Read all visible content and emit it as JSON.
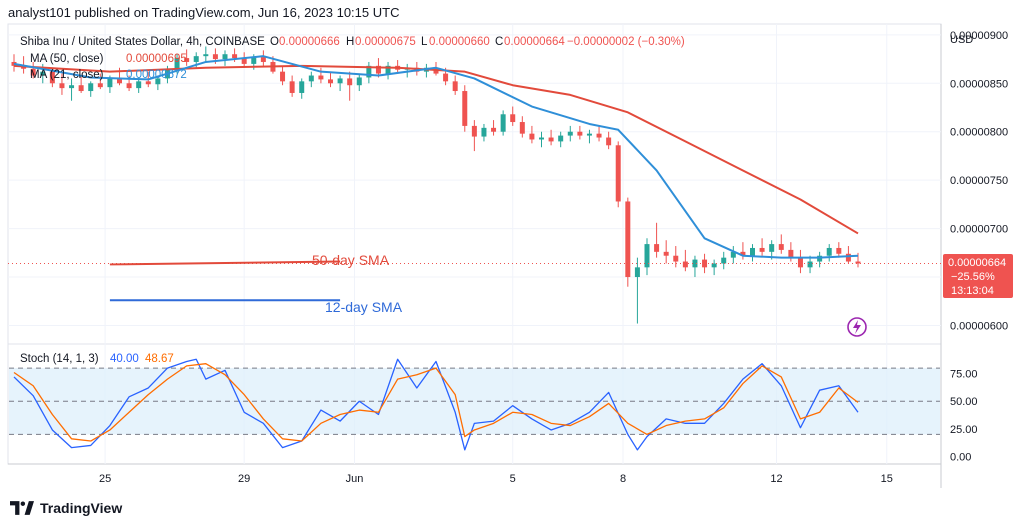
{
  "header": {
    "published_line": "analyst101 published on TradingView.com, Jun 16, 2023 10:15 UTC"
  },
  "symbol_line": {
    "name": "Shiba Inu / United States Dollar, 4h, COINBASE",
    "o_label": "O",
    "o": "0.00000666",
    "h_label": "H",
    "h": "0.00000675",
    "l_label": "L",
    "l": "0.00000660",
    "c_label": "C",
    "c": "0.00000664",
    "change": "−0.00000002 (−0.30%)"
  },
  "ma_legend": [
    {
      "label": "MA (50, close)",
      "value": "0.00000695",
      "color": "#e24a3b"
    },
    {
      "label": "MA (21, close)",
      "value": "0.00000672",
      "color": "#2f8fd8"
    }
  ],
  "annotations": {
    "sma50": "50-day SMA",
    "sma12": "12-day SMA"
  },
  "price_badge": {
    "price": "0.00000664",
    "change_pct": "−25.56%",
    "countdown": "13:13:04",
    "color": "#ef5350"
  },
  "stoch_legend": {
    "label": "Stoch (14, 1, 3)",
    "k": "40.00",
    "d": "48.67",
    "k_color": "#2962ff",
    "d_color": "#ff6d00"
  },
  "footer": {
    "brand": "TradingView"
  },
  "colors": {
    "up": "#26a69a",
    "down": "#ef5350",
    "ma50": "#e24a3b",
    "ma21": "#2f8fd8",
    "band": "#dceefb"
  },
  "chart_data": [
    {
      "type": "candlestick",
      "title": "Shiba Inu / United States Dollar, 4h, COINBASE",
      "currency": "USD",
      "x_ticks": [
        "25",
        "29",
        "Jun",
        "5",
        "8",
        "12",
        "15"
      ],
      "y_ticks": [
        "0.00000900",
        "0.00000850",
        "0.00000800",
        "0.00000750",
        "0.00000700",
        "0.00000650",
        "0.00000600"
      ],
      "ylim": [
        5.85e-06,
        9.05e-06
      ],
      "x_range": [
        0,
        100
      ],
      "grid": true,
      "last_price": 6.64e-06,
      "candles": [
        [
          0,
          8.72e-06,
          8.8e-06,
          8.62e-06,
          8.68e-06
        ],
        [
          1,
          8.68e-06,
          8.78e-06,
          8.6e-06,
          8.65e-06
        ],
        [
          2,
          8.65e-06,
          8.72e-06,
          8.55e-06,
          8.58e-06
        ],
        [
          3,
          8.58e-06,
          8.7e-06,
          8.5e-06,
          8.62e-06
        ],
        [
          4,
          8.62e-06,
          8.66e-06,
          8.46e-06,
          8.5e-06
        ],
        [
          5,
          8.5e-06,
          8.6e-06,
          8.38e-06,
          8.45e-06
        ],
        [
          6,
          8.45e-06,
          8.55e-06,
          8.32e-06,
          8.48e-06
        ],
        [
          7,
          8.48e-06,
          8.58e-06,
          8.4e-06,
          8.42e-06
        ],
        [
          8,
          8.42e-06,
          8.52e-06,
          8.36e-06,
          8.5e-06
        ],
        [
          9,
          8.5e-06,
          8.6e-06,
          8.44e-06,
          8.46e-06
        ],
        [
          10,
          8.46e-06,
          8.58e-06,
          8.4e-06,
          8.55e-06
        ],
        [
          11,
          8.55e-06,
          8.66e-06,
          8.48e-06,
          8.5e-06
        ],
        [
          12,
          8.5e-06,
          8.58e-06,
          8.42e-06,
          8.45e-06
        ],
        [
          13,
          8.45e-06,
          8.56e-06,
          8.4e-06,
          8.52e-06
        ],
        [
          14,
          8.52e-06,
          8.62e-06,
          8.46e-06,
          8.49e-06
        ],
        [
          15,
          8.49e-06,
          8.58e-06,
          8.43e-06,
          8.55e-06
        ],
        [
          16,
          8.55e-06,
          8.68e-06,
          8.5e-06,
          8.65e-06
        ],
        [
          17,
          8.65e-06,
          8.8e-06,
          8.6e-06,
          8.76e-06
        ],
        [
          18,
          8.76e-06,
          8.85e-06,
          8.68e-06,
          8.72e-06
        ],
        [
          19,
          8.72e-06,
          8.82e-06,
          8.66e-06,
          8.78e-06
        ],
        [
          20,
          8.78e-06,
          8.88e-06,
          8.72e-06,
          8.8e-06
        ],
        [
          21,
          8.8e-06,
          8.86e-06,
          8.7e-06,
          8.75e-06
        ],
        [
          22,
          8.75e-06,
          8.84e-06,
          8.68e-06,
          8.8e-06
        ],
        [
          23,
          8.8e-06,
          8.86e-06,
          8.72e-06,
          8.76e-06
        ],
        [
          24,
          8.76e-06,
          8.82e-06,
          8.66e-06,
          8.7e-06
        ],
        [
          25,
          8.7e-06,
          8.8e-06,
          8.64e-06,
          8.77e-06
        ],
        [
          26,
          8.77e-06,
          8.84e-06,
          8.68e-06,
          8.72e-06
        ],
        [
          27,
          8.72e-06,
          8.78e-06,
          8.6e-06,
          8.62e-06
        ],
        [
          28,
          8.62e-06,
          8.68e-06,
          8.48e-06,
          8.52e-06
        ],
        [
          29,
          8.52e-06,
          8.58e-06,
          8.36e-06,
          8.4e-06
        ],
        [
          30,
          8.4e-06,
          8.55e-06,
          8.34e-06,
          8.52e-06
        ],
        [
          31,
          8.52e-06,
          8.62e-06,
          8.46e-06,
          8.58e-06
        ],
        [
          32,
          8.58e-06,
          8.66e-06,
          8.5e-06,
          8.54e-06
        ],
        [
          33,
          8.54e-06,
          8.62e-06,
          8.46e-06,
          8.5e-06
        ],
        [
          34,
          8.5e-06,
          8.58e-06,
          8.42e-06,
          8.55e-06
        ],
        [
          35,
          8.55e-06,
          8.62e-06,
          8.32e-06,
          8.48e-06
        ],
        [
          36,
          8.48e-06,
          8.6e-06,
          8.42e-06,
          8.56e-06
        ],
        [
          37,
          8.56e-06,
          8.72e-06,
          8.5e-06,
          8.68e-06
        ],
        [
          38,
          8.68e-06,
          8.76e-06,
          8.56e-06,
          8.6e-06
        ],
        [
          39,
          8.6e-06,
          8.72e-06,
          8.54e-06,
          8.68e-06
        ],
        [
          40,
          8.68e-06,
          8.74e-06,
          8.6e-06,
          8.64e-06
        ],
        [
          41,
          8.64e-06,
          8.7e-06,
          8.56e-06,
          8.66e-06
        ],
        [
          42,
          8.66e-06,
          8.72e-06,
          8.58e-06,
          8.62e-06
        ],
        [
          43,
          8.62e-06,
          8.7e-06,
          8.56e-06,
          8.66e-06
        ],
        [
          44,
          8.66e-06,
          8.72e-06,
          8.58e-06,
          8.6e-06
        ],
        [
          45,
          8.6e-06,
          8.66e-06,
          8.48e-06,
          8.52e-06
        ],
        [
          46,
          8.52e-06,
          8.58e-06,
          8.38e-06,
          8.42e-06
        ],
        [
          47,
          8.42e-06,
          8.48e-06,
          8e-06,
          8.06e-06
        ],
        [
          48,
          8.06e-06,
          8.12e-06,
          7.8e-06,
          7.95e-06
        ],
        [
          49,
          7.95e-06,
          8.08e-06,
          7.9e-06,
          8.04e-06
        ],
        [
          50,
          8.04e-06,
          8.12e-06,
          7.96e-06,
          8e-06
        ],
        [
          51,
          8e-06,
          8.22e-06,
          7.96e-06,
          8.18e-06
        ],
        [
          52,
          8.18e-06,
          8.26e-06,
          8.06e-06,
          8.1e-06
        ],
        [
          53,
          8.1e-06,
          8.16e-06,
          7.94e-06,
          7.98e-06
        ],
        [
          54,
          7.98e-06,
          8.06e-06,
          7.88e-06,
          7.92e-06
        ],
        [
          55,
          7.92e-06,
          8e-06,
          7.84e-06,
          7.94e-06
        ],
        [
          56,
          7.94e-06,
          8.02e-06,
          7.86e-06,
          7.9e-06
        ],
        [
          57,
          7.9e-06,
          8e-06,
          7.84e-06,
          7.96e-06
        ],
        [
          58,
          7.96e-06,
          8.06e-06,
          7.9e-06,
          8e-06
        ],
        [
          59,
          8e-06,
          8.06e-06,
          7.92e-06,
          7.96e-06
        ],
        [
          60,
          7.96e-06,
          8.02e-06,
          7.88e-06,
          7.98e-06
        ],
        [
          61,
          7.98e-06,
          8.06e-06,
          7.9e-06,
          7.94e-06
        ],
        [
          62,
          7.94e-06,
          8e-06,
          7.82e-06,
          7.86e-06
        ],
        [
          63,
          7.86e-06,
          7.9e-06,
          7.22e-06,
          7.28e-06
        ],
        [
          64,
          7.28e-06,
          7.32e-06,
          6.4e-06,
          6.5e-06
        ],
        [
          65,
          6.5e-06,
          6.7e-06,
          6.02e-06,
          6.6e-06
        ],
        [
          66,
          6.6e-06,
          6.9e-06,
          6.52e-06,
          6.84e-06
        ],
        [
          67,
          6.84e-06,
          7.06e-06,
          6.7e-06,
          6.76e-06
        ],
        [
          68,
          6.76e-06,
          6.88e-06,
          6.64e-06,
          6.72e-06
        ],
        [
          69,
          6.72e-06,
          6.82e-06,
          6.6e-06,
          6.66e-06
        ],
        [
          70,
          6.66e-06,
          6.78e-06,
          6.56e-06,
          6.6e-06
        ],
        [
          71,
          6.6e-06,
          6.72e-06,
          6.5e-06,
          6.68e-06
        ],
        [
          72,
          6.68e-06,
          6.74e-06,
          6.54e-06,
          6.6e-06
        ],
        [
          73,
          6.6e-06,
          6.68e-06,
          6.52e-06,
          6.64e-06
        ],
        [
          74,
          6.64e-06,
          6.76e-06,
          6.58e-06,
          6.7e-06
        ],
        [
          75,
          6.7e-06,
          6.82e-06,
          6.64e-06,
          6.76e-06
        ],
        [
          76,
          6.76e-06,
          6.86e-06,
          6.68e-06,
          6.72e-06
        ],
        [
          77,
          6.72e-06,
          6.84e-06,
          6.66e-06,
          6.8e-06
        ],
        [
          78,
          6.8e-06,
          6.9e-06,
          6.72e-06,
          6.76e-06
        ],
        [
          79,
          6.76e-06,
          6.88e-06,
          6.68e-06,
          6.84e-06
        ],
        [
          80,
          6.84e-06,
          6.94e-06,
          6.74e-06,
          6.78e-06
        ],
        [
          81,
          6.78e-06,
          6.86e-06,
          6.66e-06,
          6.7e-06
        ],
        [
          82,
          6.7e-06,
          6.78e-06,
          6.54e-06,
          6.6e-06
        ],
        [
          83,
          6.6e-06,
          6.72e-06,
          6.54e-06,
          6.66e-06
        ],
        [
          84,
          6.66e-06,
          6.76e-06,
          6.6e-06,
          6.72e-06
        ],
        [
          85,
          6.72e-06,
          6.84e-06,
          6.66e-06,
          6.8e-06
        ],
        [
          86,
          6.8e-06,
          6.86e-06,
          6.7e-06,
          6.74e-06
        ],
        [
          87,
          6.74e-06,
          6.82e-06,
          6.64e-06,
          6.66e-06
        ],
        [
          88,
          6.66e-06,
          6.75e-06,
          6.6e-06,
          6.64e-06
        ]
      ],
      "ma50": {
        "name": "MA (50, close)",
        "points": [
          [
            0,
            8.68e-06
          ],
          [
            10,
            8.62e-06
          ],
          [
            20,
            8.66e-06
          ],
          [
            30,
            8.68e-06
          ],
          [
            40,
            8.66e-06
          ],
          [
            47,
            8.62e-06
          ],
          [
            52,
            8.48e-06
          ],
          [
            58,
            8.38e-06
          ],
          [
            64,
            8.2e-06
          ],
          [
            70,
            7.9e-06
          ],
          [
            76,
            7.6e-06
          ],
          [
            82,
            7.3e-06
          ],
          [
            88,
            6.95e-06
          ]
        ]
      },
      "ma21": {
        "name": "MA (21, close)",
        "points": [
          [
            0,
            8.7e-06
          ],
          [
            8,
            8.56e-06
          ],
          [
            14,
            8.54e-06
          ],
          [
            20,
            8.72e-06
          ],
          [
            26,
            8.78e-06
          ],
          [
            32,
            8.62e-06
          ],
          [
            38,
            8.58e-06
          ],
          [
            44,
            8.66e-06
          ],
          [
            48,
            8.55e-06
          ],
          [
            54,
            8.26e-06
          ],
          [
            60,
            8.08e-06
          ],
          [
            63,
            8.02e-06
          ],
          [
            67,
            7.6e-06
          ],
          [
            72,
            6.9e-06
          ],
          [
            76,
            6.72e-06
          ],
          [
            80,
            6.7e-06
          ],
          [
            84,
            6.7e-06
          ],
          [
            88,
            6.72e-06
          ]
        ]
      },
      "drawn_lines": [
        {
          "label": "50-day SMA",
          "color": "#e24a3b",
          "y_start": 6.63e-06,
          "y_end": 6.66e-06,
          "x_start": 10,
          "x_end": 34
        },
        {
          "label": "12-day SMA",
          "color": "#2f6ad8",
          "y_start": 6.26e-06,
          "y_end": 6.26e-06,
          "x_start": 10,
          "x_end": 34
        }
      ]
    },
    {
      "type": "line",
      "title": "Stoch (14, 1, 3)",
      "y_ticks": [
        "75.00",
        "50.00",
        "25.00",
        "0.00"
      ],
      "ylim": [
        -5,
        100
      ],
      "bands": [
        20,
        80
      ],
      "series": [
        {
          "name": "%K",
          "color": "#2962ff",
          "x": [
            0,
            2,
            4,
            6,
            8,
            10,
            12,
            14,
            16,
            18,
            19,
            20,
            22,
            24,
            26,
            28,
            30,
            32,
            34,
            36,
            38,
            40,
            42,
            44,
            46,
            47,
            48,
            50,
            52,
            54,
            56,
            58,
            60,
            62,
            64,
            65,
            66,
            68,
            70,
            72,
            74,
            76,
            78,
            80,
            82,
            84,
            86,
            88
          ],
          "values": [
            72,
            55,
            24,
            8,
            10,
            28,
            54,
            62,
            80,
            86,
            88,
            70,
            78,
            40,
            30,
            8,
            14,
            42,
            32,
            50,
            38,
            88,
            62,
            86,
            40,
            6,
            30,
            32,
            46,
            34,
            24,
            30,
            40,
            58,
            20,
            6,
            18,
            34,
            30,
            30,
            48,
            70,
            84,
            64,
            26,
            60,
            64,
            40
          ]
        },
        {
          "name": "%D",
          "color": "#ff6d00",
          "x": [
            0,
            2,
            4,
            6,
            8,
            10,
            12,
            14,
            16,
            18,
            20,
            22,
            24,
            26,
            28,
            30,
            32,
            34,
            36,
            38,
            40,
            42,
            44,
            46,
            47,
            48,
            50,
            52,
            54,
            56,
            58,
            60,
            62,
            64,
            66,
            68,
            70,
            72,
            74,
            76,
            78,
            80,
            82,
            84,
            86,
            88
          ],
          "values": [
            76,
            64,
            38,
            16,
            14,
            24,
            40,
            56,
            70,
            82,
            84,
            74,
            56,
            34,
            16,
            14,
            30,
            38,
            42,
            40,
            70,
            74,
            80,
            56,
            18,
            24,
            30,
            40,
            38,
            30,
            28,
            36,
            48,
            30,
            20,
            28,
            32,
            34,
            44,
            66,
            82,
            72,
            34,
            40,
            62,
            49
          ]
        }
      ]
    }
  ]
}
